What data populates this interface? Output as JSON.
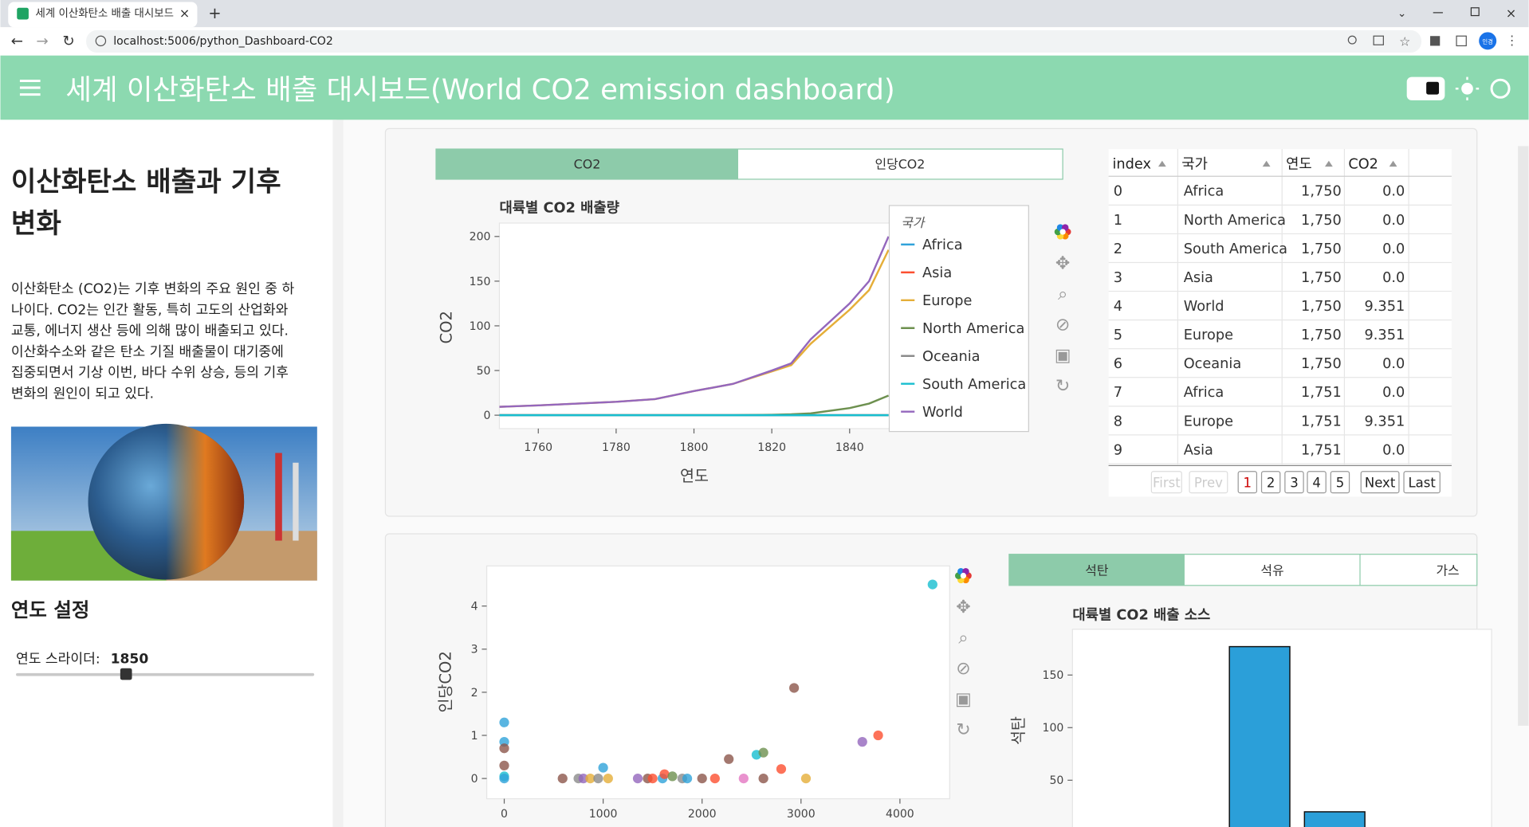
{
  "browser": {
    "tab_title": "세계 이산화탄소 배출 대시보드(World CO2 emission dashboard)",
    "url": "localhost:5006/python_Dashboard-CO2",
    "profile": "인경"
  },
  "header": {
    "title": "세계 이산화탄소 배출 대시보드(World CO2 emission dashboard)"
  },
  "sidebar": {
    "heading": [
      "이산화탄소 배출과 기후",
      "변화"
    ],
    "paragraph": [
      "이산화탄소 (CO2)는 기후 변화의 주요 원인 중 하",
      "나이다. CO2는 인간 활동, 특히 고도의 산업화와",
      "교통, 에너지 생산 등에 의해 많이 배출되고 있다.",
      "이산화수소와 같은 탄소 기질 배출물이 대기중에",
      "집중되면서 기상 이번, 바다 수위 상승, 등의 기후",
      "변화의 원인이 되고 있다."
    ],
    "section": "연도 설정",
    "slider_label": "연도 스라이더:",
    "slider_value": 1850
  },
  "tabs_top": [
    "CO2",
    "인당CO2"
  ],
  "table": {
    "headers": [
      "index",
      "국가",
      "연도",
      "CO2"
    ],
    "rows": [
      [
        "0",
        "Africa",
        "1,750",
        "0.0"
      ],
      [
        "1",
        "North America",
        "1,750",
        "0.0"
      ],
      [
        "2",
        "South America",
        "1,750",
        "0.0"
      ],
      [
        "3",
        "Asia",
        "1,750",
        "0.0"
      ],
      [
        "4",
        "World",
        "1,750",
        "9.351"
      ],
      [
        "5",
        "Europe",
        "1,750",
        "9.351"
      ],
      [
        "6",
        "Oceania",
        "1,750",
        "0.0"
      ],
      [
        "7",
        "Africa",
        "1,751",
        "0.0"
      ],
      [
        "8",
        "Europe",
        "1,751",
        "9.351"
      ],
      [
        "9",
        "Asia",
        "1,751",
        "0.0"
      ]
    ],
    "pagination": [
      "First",
      "Prev",
      "1",
      "2",
      "3",
      "4",
      "5",
      "Next",
      "Last"
    ]
  },
  "tabs_bottom": [
    "석탄",
    "석유",
    "가스"
  ],
  "chart_data": [
    {
      "type": "line",
      "title": "대륙별 CO2 배출량",
      "x_label": "연도",
      "y_label": "CO2",
      "legend_title": "국가",
      "x": [
        1750,
        1760,
        1770,
        1780,
        1790,
        1800,
        1810,
        1820,
        1825,
        1830,
        1840,
        1845,
        1850
      ],
      "series": [
        {
          "name": "Africa",
          "color": "#30a2da",
          "values": [
            0,
            0,
            0,
            0,
            0,
            0,
            0,
            0,
            0,
            0,
            0,
            0,
            0
          ]
        },
        {
          "name": "Asia",
          "color": "#fc4f30",
          "values": [
            0,
            0,
            0,
            0,
            0,
            0,
            0,
            0,
            0,
            0,
            0,
            0,
            0
          ]
        },
        {
          "name": "Europe",
          "color": "#e5ae38",
          "values": [
            9.351,
            11,
            13,
            15,
            18,
            27,
            35,
            49,
            56,
            80,
            118,
            140,
            185
          ]
        },
        {
          "name": "North America",
          "color": "#6d904f",
          "values": [
            0,
            0,
            0,
            0,
            0,
            0,
            0,
            0.5,
            1,
            2,
            8,
            13,
            22
          ]
        },
        {
          "name": "Oceania",
          "color": "#8b8b8b",
          "values": [
            0,
            0,
            0,
            0,
            0,
            0,
            0,
            0,
            0,
            0,
            0,
            0,
            0
          ]
        },
        {
          "name": "South America",
          "color": "#17becf",
          "values": [
            0,
            0,
            0,
            0,
            0,
            0,
            0,
            0,
            0,
            0,
            0,
            0,
            0
          ]
        },
        {
          "name": "World",
          "color": "#9467bd",
          "values": [
            9.351,
            11,
            13,
            15,
            18,
            27,
            35,
            50,
            58,
            85,
            125,
            150,
            200
          ]
        }
      ],
      "xlim": [
        1750,
        1886
      ],
      "ylim": [
        -15,
        215
      ],
      "xticks": [
        1760,
        1780,
        1800,
        1820,
        1840
      ],
      "yticks": [
        0,
        50,
        100,
        150,
        200
      ]
    },
    {
      "type": "scatter",
      "y_label": "인당CO2",
      "x": [
        0,
        0,
        0,
        0,
        0,
        0,
        590,
        750,
        800,
        870,
        950,
        1000,
        1050,
        1350,
        1450,
        1500,
        1600,
        1620,
        1700,
        1800,
        1850,
        2000,
        2130,
        2270,
        2420,
        2550,
        2620,
        2620,
        2800,
        2930,
        3050,
        3620,
        3780,
        4330
      ],
      "values": [
        1.3,
        0.85,
        0.7,
        0.3,
        0.05,
        0,
        0,
        0,
        0,
        0,
        0,
        0.25,
        0,
        0,
        0,
        0,
        0,
        0.1,
        0.05,
        0,
        0,
        0,
        0,
        0.45,
        0,
        0.55,
        0.6,
        0,
        0.22,
        2.1,
        0,
        0.85,
        1,
        4.5
      ],
      "colors": [
        "#30a2da",
        "#30a2da",
        "#8c564b",
        "#8c564b",
        "#17becf",
        "#30a2da",
        "#8c564b",
        "#8b8b8b",
        "#9467bd",
        "#e5ae38",
        "#8b8b8b",
        "#30a2da",
        "#e5ae38",
        "#9467bd",
        "#8c564b",
        "#fc4f30",
        "#30a2da",
        "#fc4f30",
        "#6d904f",
        "#8b8b8b",
        "#30a2da",
        "#8c564b",
        "#fc4f30",
        "#8c564b",
        "#e377c2",
        "#17becf",
        "#6d904f",
        "#8c564b",
        "#fc4f30",
        "#8c564b",
        "#e5ae38",
        "#9467bd",
        "#fc4f30",
        "#17becf"
      ],
      "xlim": [
        -177,
        4503
      ],
      "ylim": [
        -0.47,
        4.93
      ],
      "xticks": [
        0,
        1000,
        2000,
        3000,
        4000
      ],
      "yticks": [
        0,
        1,
        2,
        3,
        4
      ]
    },
    {
      "type": "bar",
      "title": "대륙별 CO2 배출 소스",
      "y_label": "석탄",
      "categories": [
        null,
        null
      ],
      "values": [
        177,
        20
      ],
      "color": "#2b9fd9",
      "ylim": [
        0,
        193.5
      ],
      "yticks": [
        50,
        100,
        150
      ]
    }
  ]
}
